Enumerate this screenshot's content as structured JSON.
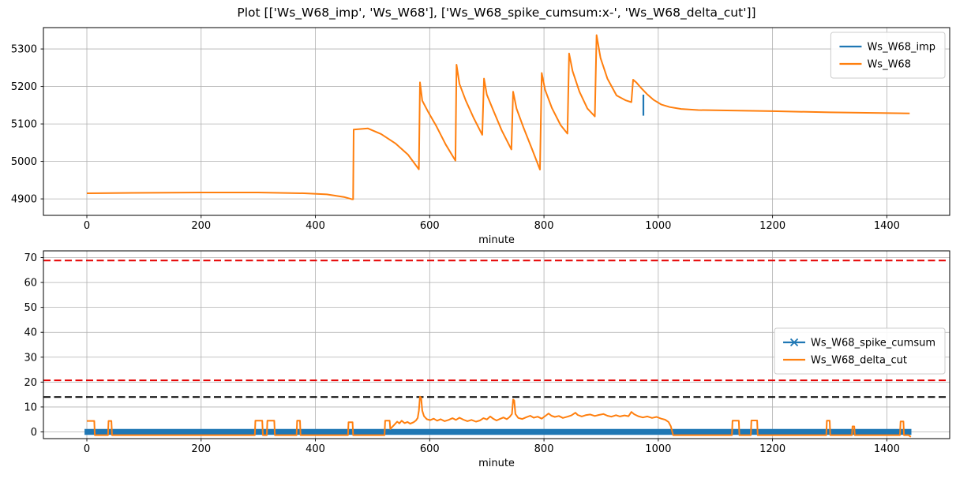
{
  "chart_data": [
    {
      "type": "line",
      "title": "Plot [['Ws_W68_imp', 'Ws_W68'], ['Ws_W68_spike_cumsum:x-', 'Ws_W68_delta_cut']]",
      "xlabel": "minute",
      "xlim": [
        -76,
        1510
      ],
      "ylim": [
        4856,
        5357
      ],
      "xticks": [
        0,
        200,
        400,
        600,
        800,
        1000,
        1200,
        1400
      ],
      "yticks": [
        4900,
        5000,
        5100,
        5200,
        5300
      ],
      "grid": true,
      "legend_loc": "upper right",
      "series": [
        {
          "name": "Ws_W68_imp",
          "color": "#1f77b4",
          "linewidth": 2.2,
          "marker": "",
          "points": [
            [
              974,
              5178
            ],
            [
              974,
              5122
            ]
          ]
        },
        {
          "name": "Ws_W68",
          "color": "#ff7f0e",
          "linewidth": 2,
          "marker": "",
          "points": [
            [
              0,
              4915
            ],
            [
              80,
              4916
            ],
            [
              200,
              4917
            ],
            [
              300,
              4917
            ],
            [
              380,
              4915
            ],
            [
              420,
              4912
            ],
            [
              450,
              4905
            ],
            [
              464,
              4899
            ],
            [
              466,
              4899
            ],
            [
              467,
              5085
            ],
            [
              492,
              5088
            ],
            [
              515,
              5073
            ],
            [
              540,
              5048
            ],
            [
              562,
              5018
            ],
            [
              581,
              4979
            ],
            [
              583,
              5211
            ],
            [
              587,
              5162
            ],
            [
              598,
              5130
            ],
            [
              612,
              5093
            ],
            [
              628,
              5045
            ],
            [
              645,
              5002
            ],
            [
              647,
              5258
            ],
            [
              652,
              5207
            ],
            [
              663,
              5163
            ],
            [
              677,
              5116
            ],
            [
              692,
              5071
            ],
            [
              695,
              5221
            ],
            [
              700,
              5178
            ],
            [
              711,
              5137
            ],
            [
              726,
              5083
            ],
            [
              743,
              5032
            ],
            [
              746,
              5186
            ],
            [
              752,
              5141
            ],
            [
              764,
              5091
            ],
            [
              779,
              5033
            ],
            [
              793,
              4978
            ],
            [
              796,
              5236
            ],
            [
              802,
              5191
            ],
            [
              814,
              5142
            ],
            [
              829,
              5097
            ],
            [
              841,
              5074
            ],
            [
              844,
              5288
            ],
            [
              850,
              5241
            ],
            [
              862,
              5186
            ],
            [
              876,
              5141
            ],
            [
              889,
              5120
            ],
            [
              892,
              5337
            ],
            [
              899,
              5276
            ],
            [
              911,
              5221
            ],
            [
              927,
              5176
            ],
            [
              943,
              5163
            ],
            [
              953,
              5158
            ],
            [
              956,
              5218
            ],
            [
              962,
              5210
            ],
            [
              970,
              5196
            ],
            [
              980,
              5180
            ],
            [
              992,
              5164
            ],
            [
              1005,
              5152
            ],
            [
              1020,
              5145
            ],
            [
              1040,
              5140
            ],
            [
              1070,
              5137
            ],
            [
              1120,
              5136
            ],
            [
              1200,
              5134
            ],
            [
              1300,
              5131
            ],
            [
              1440,
              5128
            ]
          ]
        }
      ]
    },
    {
      "type": "line",
      "xlabel": "minute",
      "xlim": [
        -76,
        1510
      ],
      "ylim": [
        -2.7,
        72.7
      ],
      "xticks": [
        0,
        200,
        400,
        600,
        800,
        1000,
        1200,
        1400
      ],
      "yticks": [
        0,
        10,
        20,
        30,
        40,
        50,
        60,
        70
      ],
      "grid": true,
      "legend_loc": "center right",
      "hlines": [
        {
          "y": 68.8,
          "color": "#e50000",
          "dash": true
        },
        {
          "y": 20.7,
          "color": "#e50000",
          "dash": true
        },
        {
          "y": 14.0,
          "color": "#000000",
          "dash": true
        }
      ],
      "series": [
        {
          "name": "Ws_W68_spike_cumsum",
          "color": "#1f77b4",
          "linewidth": 7.5,
          "marker": "x",
          "points": [
            [
              -4,
              0
            ],
            [
              1443,
              0
            ]
          ]
        },
        {
          "name": "Ws_W68_delta_cut",
          "color": "#ff7f0e",
          "linewidth": 2,
          "marker": "",
          "points": [
            [
              0,
              4.4
            ],
            [
              13,
              4.4
            ],
            [
              14,
              -1.3
            ],
            [
              37,
              -1.3
            ],
            [
              38,
              4.4
            ],
            [
              43,
              4.4
            ],
            [
              44,
              -1.3
            ],
            [
              294,
              -1.3
            ],
            [
              295,
              4.5
            ],
            [
              307,
              4.5
            ],
            [
              308,
              -1.3
            ],
            [
              315,
              -1.3
            ],
            [
              316,
              4.5
            ],
            [
              328,
              4.5
            ],
            [
              329,
              -1.3
            ],
            [
              367,
              -1.3
            ],
            [
              368,
              4.5
            ],
            [
              373,
              4.5
            ],
            [
              374,
              -1.3
            ],
            [
              457,
              -1.3
            ],
            [
              458,
              3.9
            ],
            [
              465,
              3.9
            ],
            [
              466,
              -1.3
            ],
            [
              521,
              -1.3
            ],
            [
              522,
              4.5
            ],
            [
              530,
              4.5
            ],
            [
              531,
              1.2
            ],
            [
              537,
              2.6
            ],
            [
              543,
              4.1
            ],
            [
              547,
              3.4
            ],
            [
              551,
              4.5
            ],
            [
              556,
              3.5
            ],
            [
              561,
              4.0
            ],
            [
              566,
              3.3
            ],
            [
              572,
              3.9
            ],
            [
              576,
              4.6
            ],
            [
              579,
              5.6
            ],
            [
              581,
              8.5
            ],
            [
              583,
              14.2
            ],
            [
              585,
              13.6
            ],
            [
              587,
              8.5
            ],
            [
              590,
              6.3
            ],
            [
              595,
              5.1
            ],
            [
              601,
              4.7
            ],
            [
              607,
              5.3
            ],
            [
              613,
              4.5
            ],
            [
              619,
              5.1
            ],
            [
              626,
              4.3
            ],
            [
              633,
              4.8
            ],
            [
              640,
              5.5
            ],
            [
              646,
              4.8
            ],
            [
              652,
              5.7
            ],
            [
              659,
              4.9
            ],
            [
              666,
              4.3
            ],
            [
              673,
              4.8
            ],
            [
              681,
              4.1
            ],
            [
              688,
              4.6
            ],
            [
              694,
              5.5
            ],
            [
              700,
              5.0
            ],
            [
              706,
              6.2
            ],
            [
              711,
              5.3
            ],
            [
              717,
              4.6
            ],
            [
              723,
              5.2
            ],
            [
              729,
              5.8
            ],
            [
              735,
              5.1
            ],
            [
              740,
              6.0
            ],
            [
              744,
              7.2
            ],
            [
              746,
              13.0
            ],
            [
              748,
              12.6
            ],
            [
              750,
              7.2
            ],
            [
              755,
              5.6
            ],
            [
              762,
              5.2
            ],
            [
              769,
              5.9
            ],
            [
              776,
              6.5
            ],
            [
              782,
              5.7
            ],
            [
              789,
              6.1
            ],
            [
              796,
              5.3
            ],
            [
              803,
              6.5
            ],
            [
              808,
              7.4
            ],
            [
              813,
              6.5
            ],
            [
              819,
              6.0
            ],
            [
              826,
              6.4
            ],
            [
              833,
              5.6
            ],
            [
              841,
              6.1
            ],
            [
              848,
              6.6
            ],
            [
              855,
              7.7
            ],
            [
              859,
              6.8
            ],
            [
              866,
              6.2
            ],
            [
              873,
              6.7
            ],
            [
              881,
              7.0
            ],
            [
              889,
              6.4
            ],
            [
              896,
              6.8
            ],
            [
              904,
              7.2
            ],
            [
              911,
              6.5
            ],
            [
              918,
              6.1
            ],
            [
              926,
              6.7
            ],
            [
              933,
              6.2
            ],
            [
              941,
              6.6
            ],
            [
              948,
              6.3
            ],
            [
              953,
              8.0
            ],
            [
              958,
              7.1
            ],
            [
              965,
              6.3
            ],
            [
              973,
              5.8
            ],
            [
              981,
              6.2
            ],
            [
              989,
              5.6
            ],
            [
              997,
              6.0
            ],
            [
              1005,
              5.3
            ],
            [
              1012,
              4.9
            ],
            [
              1018,
              4.0
            ],
            [
              1022,
              2.2
            ],
            [
              1026,
              -1.3
            ],
            [
              1129,
              -1.3
            ],
            [
              1130,
              4.5
            ],
            [
              1141,
              4.5
            ],
            [
              1142,
              -1.3
            ],
            [
              1162,
              -1.3
            ],
            [
              1163,
              4.6
            ],
            [
              1173,
              4.6
            ],
            [
              1174,
              -1.3
            ],
            [
              1294,
              -1.3
            ],
            [
              1295,
              4.5
            ],
            [
              1300,
              4.5
            ],
            [
              1301,
              -1.3
            ],
            [
              1339,
              -1.3
            ],
            [
              1340,
              2.2
            ],
            [
              1343,
              2.2
            ],
            [
              1344,
              -1.3
            ],
            [
              1423,
              -1.3
            ],
            [
              1424,
              4.2
            ],
            [
              1429,
              4.2
            ],
            [
              1430,
              -1.3
            ],
            [
              1438,
              -1.3
            ],
            [
              1442,
              -2.0
            ]
          ]
        }
      ]
    }
  ]
}
